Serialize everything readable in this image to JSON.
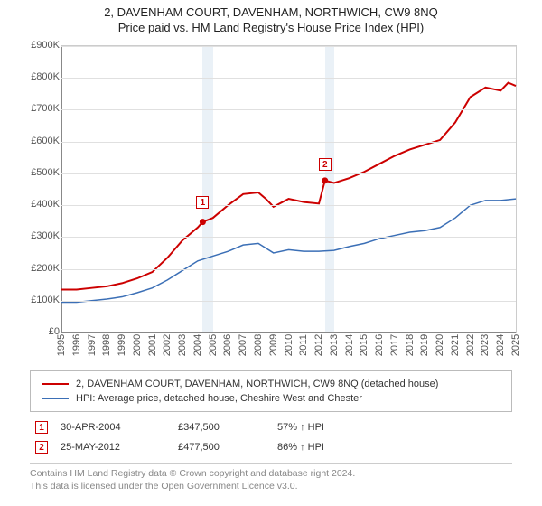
{
  "title": {
    "line1": "2, DAVENHAM COURT, DAVENHAM, NORTHWICH, CW9 8NQ",
    "line2": "Price paid vs. HM Land Registry's House Price Index (HPI)"
  },
  "chart": {
    "type": "line",
    "background_color": "#ffffff",
    "grid_color": "#e0e0e0",
    "axis_color": "#888888",
    "shade_color": "#eaf1f7",
    "tick_font_size": 11,
    "x": {
      "min": 1995,
      "max": 2025,
      "ticks": [
        1995,
        1996,
        1997,
        1998,
        1999,
        2000,
        2001,
        2002,
        2003,
        2004,
        2005,
        2006,
        2007,
        2008,
        2009,
        2010,
        2011,
        2012,
        2013,
        2014,
        2015,
        2016,
        2017,
        2018,
        2019,
        2020,
        2021,
        2022,
        2023,
        2024,
        2025
      ],
      "tick_rotation": -90
    },
    "y": {
      "min": 0,
      "max": 900000,
      "ticks": [
        0,
        100000,
        200000,
        300000,
        400000,
        500000,
        600000,
        700000,
        800000,
        900000
      ],
      "labels": [
        "£0",
        "£100K",
        "£200K",
        "£300K",
        "£400K",
        "£500K",
        "£600K",
        "£700K",
        "£800K",
        "£900K"
      ]
    },
    "shaded_spans": [
      {
        "from": 2004.33,
        "to": 2005.0
      },
      {
        "from": 2012.4,
        "to": 2013.0
      }
    ],
    "series": [
      {
        "id": "property",
        "label": "2, DAVENHAM COURT, DAVENHAM, NORTHWICH, CW9 8NQ (detached house)",
        "color": "#cc0000",
        "line_width": 2,
        "points": [
          [
            1995,
            135000
          ],
          [
            1996,
            135000
          ],
          [
            1997,
            140000
          ],
          [
            1998,
            145000
          ],
          [
            1999,
            155000
          ],
          [
            2000,
            170000
          ],
          [
            2001,
            190000
          ],
          [
            2002,
            235000
          ],
          [
            2003,
            290000
          ],
          [
            2004,
            330000
          ],
          [
            2004.33,
            347500
          ],
          [
            2005,
            360000
          ],
          [
            2006,
            400000
          ],
          [
            2007,
            435000
          ],
          [
            2008,
            440000
          ],
          [
            2008.5,
            420000
          ],
          [
            2009,
            395000
          ],
          [
            2010,
            420000
          ],
          [
            2011,
            410000
          ],
          [
            2012,
            405000
          ],
          [
            2012.4,
            477500
          ],
          [
            2013,
            470000
          ],
          [
            2014,
            485000
          ],
          [
            2015,
            505000
          ],
          [
            2016,
            530000
          ],
          [
            2017,
            555000
          ],
          [
            2018,
            575000
          ],
          [
            2019,
            590000
          ],
          [
            2020,
            605000
          ],
          [
            2021,
            660000
          ],
          [
            2022,
            740000
          ],
          [
            2023,
            770000
          ],
          [
            2024,
            760000
          ],
          [
            2024.5,
            785000
          ],
          [
            2025,
            775000
          ]
        ]
      },
      {
        "id": "hpi",
        "label": "HPI: Average price, detached house, Cheshire West and Chester",
        "color": "#3b6fb6",
        "line_width": 1.5,
        "points": [
          [
            1995,
            95000
          ],
          [
            1996,
            95000
          ],
          [
            1997,
            100000
          ],
          [
            1998,
            105000
          ],
          [
            1999,
            112000
          ],
          [
            2000,
            125000
          ],
          [
            2001,
            140000
          ],
          [
            2002,
            165000
          ],
          [
            2003,
            195000
          ],
          [
            2004,
            225000
          ],
          [
            2005,
            240000
          ],
          [
            2006,
            255000
          ],
          [
            2007,
            275000
          ],
          [
            2008,
            280000
          ],
          [
            2009,
            250000
          ],
          [
            2010,
            260000
          ],
          [
            2011,
            255000
          ],
          [
            2012,
            255000
          ],
          [
            2013,
            258000
          ],
          [
            2014,
            270000
          ],
          [
            2015,
            280000
          ],
          [
            2016,
            295000
          ],
          [
            2017,
            305000
          ],
          [
            2018,
            315000
          ],
          [
            2019,
            320000
          ],
          [
            2020,
            330000
          ],
          [
            2021,
            360000
          ],
          [
            2022,
            400000
          ],
          [
            2023,
            415000
          ],
          [
            2024,
            415000
          ],
          [
            2025,
            420000
          ]
        ]
      }
    ],
    "sale_markers": [
      {
        "n": "1",
        "x": 2004.33,
        "y": 347500,
        "box_offset_y": -28
      },
      {
        "n": "2",
        "x": 2012.4,
        "y": 477500,
        "box_offset_y": -24
      }
    ]
  },
  "legend": {
    "series1_color": "#cc0000",
    "series2_color": "#3b6fb6",
    "series1_label": "2, DAVENHAM COURT, DAVENHAM, NORTHWICH, CW9 8NQ (detached house)",
    "series2_label": "HPI: Average price, detached house, Cheshire West and Chester"
  },
  "sales": [
    {
      "n": "1",
      "date": "30-APR-2004",
      "price": "£347,500",
      "pct": "57%",
      "arrow": "↑",
      "suffix": "HPI"
    },
    {
      "n": "2",
      "date": "25-MAY-2012",
      "price": "£477,500",
      "pct": "86%",
      "arrow": "↑",
      "suffix": "HPI"
    }
  ],
  "footer": {
    "line1": "Contains HM Land Registry data © Crown copyright and database right 2024.",
    "line2": "This data is licensed under the Open Government Licence v3.0."
  }
}
